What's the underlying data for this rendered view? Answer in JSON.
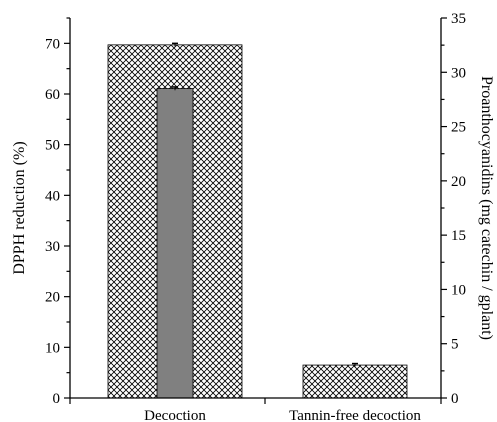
{
  "chart_data": {
    "type": "bar",
    "categories": [
      "Decoction",
      "Tannin-free decoction"
    ],
    "series": [
      {
        "axis": "left",
        "pattern": "crosshatch",
        "values": [
          69.7,
          6.5
        ],
        "errors": [
          0.3,
          0.3
        ]
      },
      {
        "axis": "right",
        "color": "#808080",
        "values": [
          28.5,
          null
        ],
        "errors": [
          0.15,
          null
        ]
      }
    ],
    "ylabel": "DPPH reduction (%)",
    "ylim": [
      0,
      75
    ],
    "yticks": [
      0,
      10,
      20,
      30,
      40,
      50,
      60,
      70
    ],
    "y2label": "Proanthocyanidins (mg catechin / gplant)",
    "y2lim": [
      0,
      35
    ],
    "y2ticks": [
      0,
      5,
      10,
      15,
      20,
      25,
      30,
      35
    ],
    "grid": false,
    "legend": "none"
  }
}
